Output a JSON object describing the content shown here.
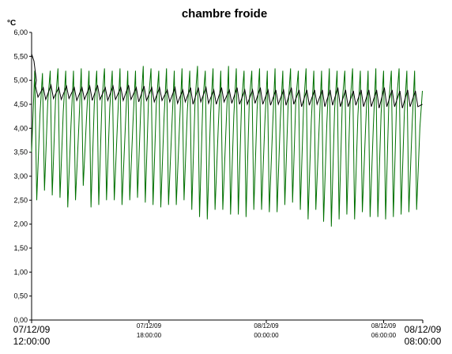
{
  "chart_data": {
    "type": "line",
    "title": "chambre froide",
    "ylabel": "°C",
    "ylim": [
      0,
      6
    ],
    "y_ticks": [
      "0,00",
      "0,50",
      "1,00",
      "1,50",
      "2,00",
      "2,50",
      "3,00",
      "3,50",
      "4,00",
      "4,50",
      "5,00",
      "5,50",
      "6,00"
    ],
    "x_range": [
      "2009-12-07T12:00:00",
      "2009-12-08T08:00:00"
    ],
    "x_ticks": [
      {
        "date": "07/12/09",
        "time": "12:00:00",
        "major": true
      },
      {
        "date": "07/12/09",
        "time": "18:00:00",
        "major": false
      },
      {
        "date": "08/12/09",
        "time": "00:00:00",
        "major": false
      },
      {
        "date": "08/12/09",
        "time": "06:00:00",
        "major": false
      },
      {
        "date": "08/12/09",
        "time": "08:00:00",
        "major": true
      }
    ],
    "grid": false,
    "series": [
      {
        "color": "#007000",
        "cycles": 50,
        "peaks": [
          5.2,
          5.15,
          5.2,
          5.25,
          5.2,
          5.2,
          5.25,
          5.2,
          5.2,
          5.25,
          5.2,
          5.25,
          5.2,
          5.2,
          5.3,
          5.25,
          5.2,
          5.25,
          5.2,
          5.25,
          5.2,
          5.3,
          5.2,
          5.25,
          5.2,
          5.3,
          5.25,
          5.2,
          5.2,
          5.25,
          5.2,
          5.25,
          5.2,
          5.25,
          5.2,
          5.25,
          5.2,
          5.2,
          5.25,
          5.2,
          5.2,
          5.25,
          5.2,
          5.2,
          5.25,
          5.2,
          5.2,
          5.25,
          5.2,
          5.2
        ],
        "troughs": [
          2.5,
          2.7,
          2.6,
          2.55,
          2.35,
          2.5,
          2.8,
          2.35,
          2.4,
          2.5,
          2.5,
          2.4,
          2.5,
          2.55,
          2.45,
          2.4,
          2.35,
          2.4,
          2.4,
          2.5,
          2.3,
          2.15,
          2.1,
          2.3,
          2.3,
          2.2,
          2.2,
          2.15,
          2.3,
          2.3,
          2.25,
          2.25,
          2.4,
          2.45,
          2.3,
          2.1,
          2.3,
          2.05,
          1.95,
          2.1,
          2.2,
          2.1,
          2.25,
          2.15,
          2.15,
          2.1,
          2.15,
          2.2,
          2.25,
          2.3
        ],
        "start": 3.5,
        "end": 4.78
      },
      {
        "color": "#000000",
        "start": 5.55,
        "highs": [
          4.88,
          4.85,
          4.9,
          4.85,
          4.88,
          4.85,
          4.85,
          4.88,
          4.9,
          4.85,
          4.88,
          4.85,
          4.9,
          4.85,
          4.88,
          4.85,
          4.85,
          4.8,
          4.85,
          4.8,
          4.85,
          4.85,
          4.85,
          4.8,
          4.85,
          4.8,
          4.85,
          4.8,
          4.8,
          4.85,
          4.8,
          4.8,
          4.8,
          4.85,
          4.8,
          4.8,
          4.8,
          4.8,
          4.8,
          4.85,
          4.8,
          4.78,
          4.8,
          4.8,
          4.8,
          4.85,
          4.8,
          4.78,
          4.8,
          4.78
        ],
        "lows": [
          4.65,
          4.6,
          4.62,
          4.6,
          4.62,
          4.58,
          4.6,
          4.58,
          4.6,
          4.58,
          4.6,
          4.58,
          4.6,
          4.55,
          4.58,
          4.55,
          4.58,
          4.55,
          4.52,
          4.55,
          4.5,
          4.55,
          4.52,
          4.5,
          4.55,
          4.52,
          4.5,
          4.5,
          4.52,
          4.5,
          4.48,
          4.5,
          4.48,
          4.5,
          4.45,
          4.48,
          4.5,
          4.45,
          4.48,
          4.45,
          4.45,
          4.48,
          4.45,
          4.45,
          4.42,
          4.45,
          4.45,
          4.42,
          4.45,
          4.45
        ],
        "end": 4.5
      }
    ]
  }
}
